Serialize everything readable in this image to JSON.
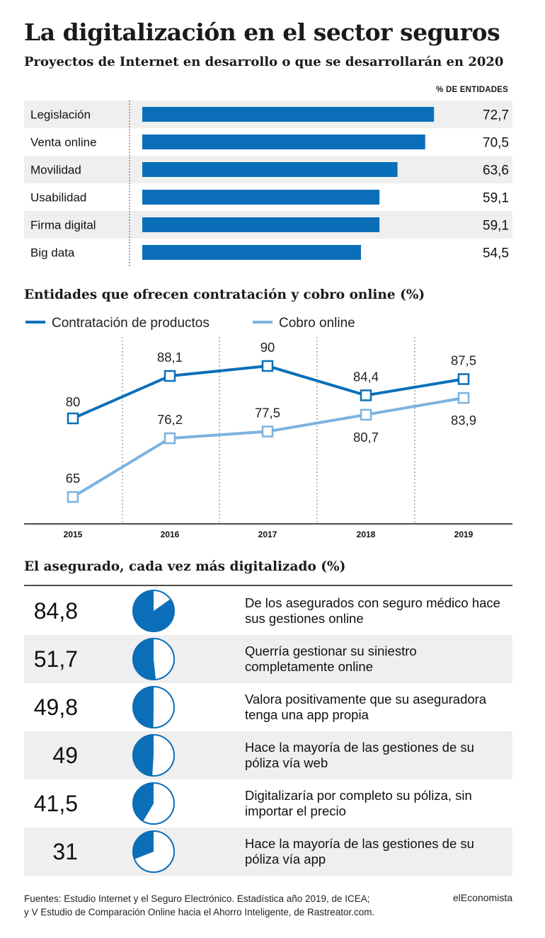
{
  "header": {
    "title": "La digitalización en el sector seguros",
    "subtitle": "Proyectos de Internet en desarrollo o que se desarrollarán en 2020"
  },
  "colors": {
    "dark_blue": "#0a6fb8",
    "light_blue": "#7cb3e0",
    "row_shade": "#efefef"
  },
  "chart_data": [
    {
      "type": "bar",
      "orientation": "horizontal",
      "unit_label": "% DE ENTIDADES",
      "categories": [
        "Legislación",
        "Venta online",
        "Movilidad",
        "Usabilidad",
        "Firma digital",
        "Big data"
      ],
      "values": [
        72.7,
        70.5,
        63.6,
        59.1,
        59.1,
        54.5
      ],
      "value_labels": [
        "72,7",
        "70,5",
        "63,6",
        "59,1",
        "59,1",
        "54,5"
      ]
    },
    {
      "type": "line",
      "title": "Entidades que ofrecen contratación y cobro online (%)",
      "x": [
        "2015",
        "2016",
        "2017",
        "2018",
        "2019"
      ],
      "series": [
        {
          "name": "Contratación de productos",
          "values": [
            80,
            88.1,
            90,
            84.4,
            87.5
          ],
          "labels": [
            "80",
            "88,1",
            "90",
            "84,4",
            "87,5"
          ]
        },
        {
          "name": "Cobro online",
          "values": [
            65,
            76.2,
            77.5,
            80.7,
            83.9
          ],
          "labels": [
            "65",
            "76,2",
            "77,5",
            "80,7",
            "83,9"
          ]
        }
      ],
      "ylim": [
        60,
        95
      ]
    },
    {
      "type": "pie",
      "title": "El asegurado, cada vez más digitalizado (%)",
      "items": [
        {
          "value": 84.8,
          "label": "84,8",
          "text": [
            "De los asegurados con seguro médico hace",
            "sus gestiones online"
          ]
        },
        {
          "value": 51.7,
          "label": "51,7",
          "text": [
            "Querría gestionar su siniestro",
            "completamente online"
          ]
        },
        {
          "value": 49.8,
          "label": "49,8",
          "text": [
            "Valora positivamente que su aseguradora",
            "tenga una app propia"
          ]
        },
        {
          "value": 49,
          "label": "49",
          "text": [
            "Hace la mayoría de las gestiones de su",
            "póliza vía web"
          ]
        },
        {
          "value": 41.5,
          "label": "41,5",
          "text": [
            "Digitalizaría por completo su póliza, sin",
            "importar el precio"
          ]
        },
        {
          "value": 31,
          "label": "31",
          "text": [
            "Hace la mayoría de las gestiones de su",
            "póliza vía app"
          ]
        }
      ]
    }
  ],
  "footer": {
    "sources": [
      "Fuentes: Estudio Internet y el Seguro Electrónico. Estadística año 2019, de ICEA;",
      "y V Estudio de Comparación Online hacia el Ahorro Inteligente, de Rastreator.com."
    ],
    "brand": "elEconomista"
  }
}
